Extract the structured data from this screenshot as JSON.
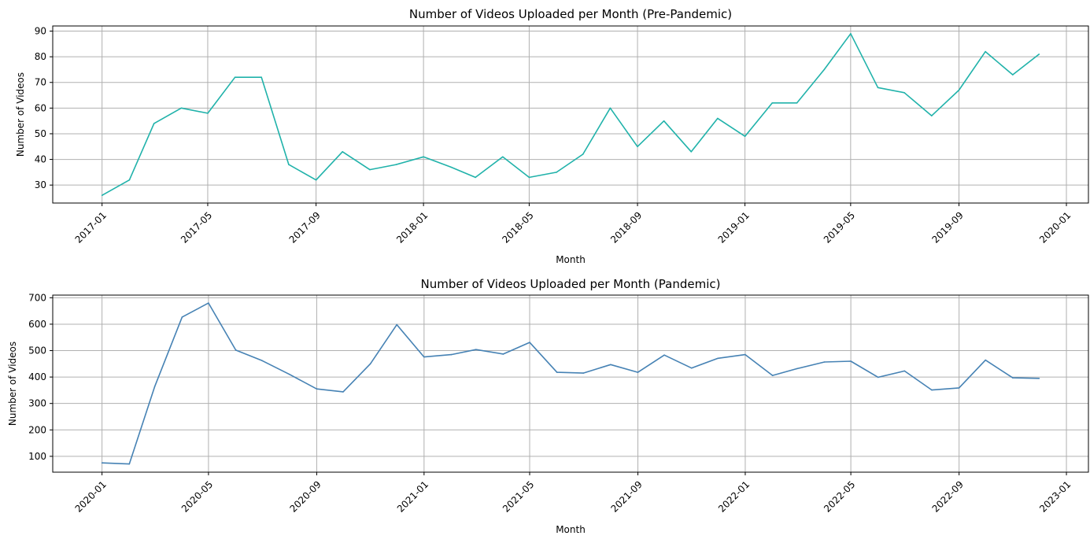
{
  "chart_data": [
    {
      "type": "line",
      "title": "Number of Videos Uploaded per Month (Pre-Pandemic)",
      "xlabel": "Month",
      "ylabel": "Number of Videos",
      "grid": true,
      "color": "#20b2aa",
      "x_range": [
        "2016-11-06",
        "2020-01-26"
      ],
      "ylim": [
        23,
        92
      ],
      "y_ticks": [
        30,
        40,
        50,
        60,
        70,
        80,
        90
      ],
      "x_ticks": [
        "2017-01",
        "2017-05",
        "2017-09",
        "2018-01",
        "2018-05",
        "2018-09",
        "2019-01",
        "2019-05",
        "2019-09",
        "2020-01"
      ],
      "x": [
        "2017-01",
        "2017-02",
        "2017-03",
        "2017-04",
        "2017-05",
        "2017-06",
        "2017-07",
        "2017-08",
        "2017-09",
        "2017-10",
        "2017-11",
        "2017-12",
        "2018-01",
        "2018-02",
        "2018-03",
        "2018-04",
        "2018-05",
        "2018-06",
        "2018-07",
        "2018-08",
        "2018-09",
        "2018-10",
        "2018-11",
        "2018-12",
        "2019-01",
        "2019-02",
        "2019-03",
        "2019-04",
        "2019-05",
        "2019-06",
        "2019-07",
        "2019-08",
        "2019-09",
        "2019-10",
        "2019-11",
        "2019-12"
      ],
      "values": [
        26,
        32,
        54,
        60,
        58,
        72,
        72,
        38,
        32,
        43,
        36,
        38,
        41,
        37,
        33,
        41,
        33,
        35,
        42,
        60,
        45,
        55,
        43,
        56,
        49,
        62,
        62,
        75,
        89,
        68,
        66,
        57,
        67,
        82,
        73,
        81
      ]
    },
    {
      "type": "line",
      "title": "Number of Videos Uploaded per Month (Pandemic)",
      "xlabel": "Month",
      "ylabel": "Number of Videos",
      "grid": true,
      "color": "#4682b4",
      "x_range": [
        "2019-11-06",
        "2023-01-26"
      ],
      "ylim": [
        40,
        710
      ],
      "y_ticks": [
        100,
        200,
        300,
        400,
        500,
        600,
        700
      ],
      "x_ticks": [
        "2020-01",
        "2020-05",
        "2020-09",
        "2021-01",
        "2021-05",
        "2021-09",
        "2022-01",
        "2022-05",
        "2022-09",
        "2023-01"
      ],
      "x": [
        "2020-01",
        "2020-02",
        "2020-03",
        "2020-04",
        "2020-05",
        "2020-06",
        "2020-07",
        "2020-08",
        "2020-09",
        "2020-10",
        "2020-11",
        "2020-12",
        "2021-01",
        "2021-02",
        "2021-03",
        "2021-04",
        "2021-05",
        "2021-06",
        "2021-07",
        "2021-08",
        "2021-09",
        "2021-10",
        "2021-11",
        "2021-12",
        "2022-01",
        "2022-02",
        "2022-03",
        "2022-04",
        "2022-05",
        "2022-06",
        "2022-07",
        "2022-08",
        "2022-09",
        "2022-10",
        "2022-11",
        "2022-12"
      ],
      "values": [
        75,
        71,
        365,
        627,
        680,
        502,
        462,
        410,
        355,
        344,
        450,
        598,
        476,
        485,
        504,
        487,
        531,
        418,
        415,
        447,
        418,
        483,
        434,
        471,
        485,
        406,
        432,
        457,
        460,
        399,
        423,
        351,
        359,
        464,
        397,
        395
      ]
    }
  ]
}
